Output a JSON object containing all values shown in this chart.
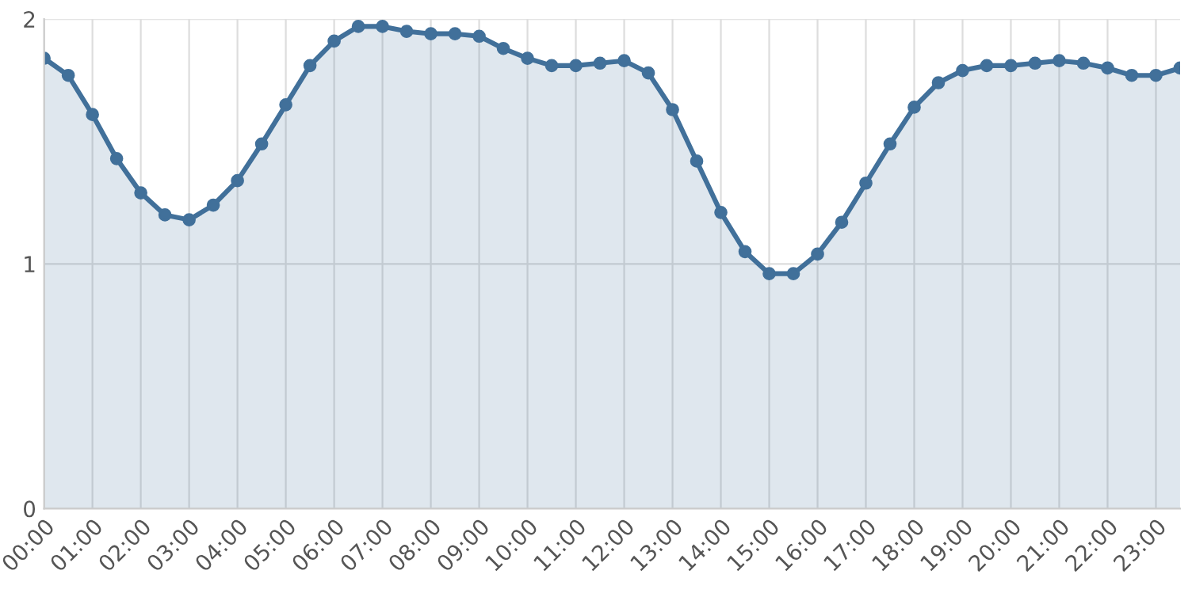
{
  "chart_data": {
    "type": "area",
    "x": [
      0,
      0.5,
      1,
      1.5,
      2,
      2.5,
      3,
      3.5,
      4,
      4.5,
      5,
      5.5,
      6,
      6.5,
      7,
      7.5,
      8,
      8.5,
      9,
      9.5,
      10,
      10.5,
      11,
      11.5,
      12,
      12.5,
      13,
      13.5,
      14,
      14.5,
      15,
      15.5,
      16,
      16.5,
      17,
      17.5,
      18,
      18.5,
      19,
      19.5,
      20,
      20.5,
      21,
      21.5,
      22,
      22.5,
      23,
      23.5
    ],
    "series": [
      {
        "color": "#41709a",
        "values": [
          1.84,
          1.77,
          1.61,
          1.43,
          1.29,
          1.2,
          1.18,
          1.24,
          1.34,
          1.49,
          1.65,
          1.81,
          1.91,
          1.97,
          1.97,
          1.95,
          1.94,
          1.94,
          1.93,
          1.88,
          1.84,
          1.81,
          1.81,
          1.82,
          1.83,
          1.78,
          1.63,
          1.42,
          1.21,
          1.05,
          0.96,
          0.96,
          1.04,
          1.17,
          1.33,
          1.49,
          1.64,
          1.74,
          1.79,
          1.81,
          1.81,
          1.82,
          1.83,
          1.82,
          1.8,
          1.77,
          1.77,
          1.8
        ]
      }
    ],
    "xlim": [
      0,
      23.5
    ],
    "xticks": [
      {
        "value": 0,
        "label": "00:00"
      },
      {
        "value": 1,
        "label": "01:00"
      },
      {
        "value": 2,
        "label": "02:00"
      },
      {
        "value": 3,
        "label": "03:00"
      },
      {
        "value": 4,
        "label": "04:00"
      },
      {
        "value": 5,
        "label": "05:00"
      },
      {
        "value": 6,
        "label": "06:00"
      },
      {
        "value": 7,
        "label": "07:00"
      },
      {
        "value": 8,
        "label": "08:00"
      },
      {
        "value": 9,
        "label": "09:00"
      },
      {
        "value": 10,
        "label": "10:00"
      },
      {
        "value": 11,
        "label": "11:00"
      },
      {
        "value": 12,
        "label": "12:00"
      },
      {
        "value": 13,
        "label": "13:00"
      },
      {
        "value": 14,
        "label": "14:00"
      },
      {
        "value": 15,
        "label": "15:00"
      },
      {
        "value": 16,
        "label": "16:00"
      },
      {
        "value": 17,
        "label": "17:00"
      },
      {
        "value": 18,
        "label": "18:00"
      },
      {
        "value": 19,
        "label": "19:00"
      },
      {
        "value": 20,
        "label": "20:00"
      },
      {
        "value": 21,
        "label": "21:00"
      },
      {
        "value": 22,
        "label": "22:00"
      },
      {
        "value": 23,
        "label": "23:00"
      }
    ],
    "ylim": [
      0,
      2
    ],
    "yticks": [
      0,
      1,
      2
    ],
    "grid": true,
    "marker": "circle",
    "line_style": "solid"
  }
}
